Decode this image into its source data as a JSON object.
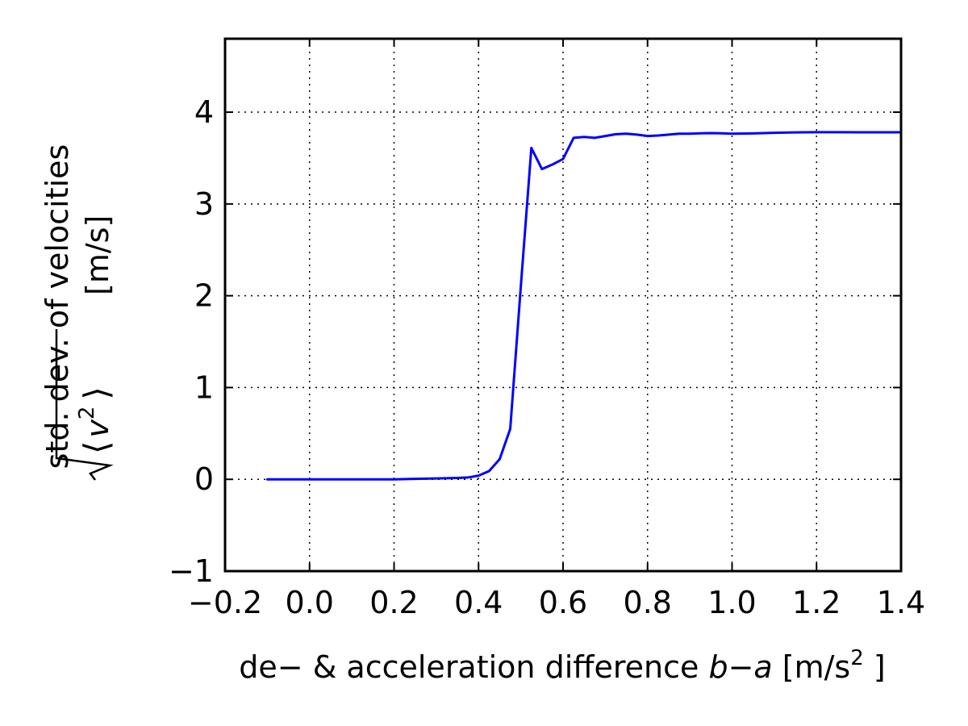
{
  "chart_data": {
    "type": "line",
    "xlabel_prefix": "de− & acceleration difference ",
    "xlabel_var_b": "b",
    "xlabel_var_minus": "−",
    "xlabel_var_a": "a",
    "xlabel_unit": " [m/s",
    "xlabel_unit_sup": "2",
    "xlabel_unit_close": " ]",
    "ylabel_line1": "std. dev. of velocities",
    "ylabel_var": "v",
    "ylabel_sup": "2",
    "ylabel_unit": "[m/s]",
    "xlim": [
      -0.2,
      1.4
    ],
    "ylim": [
      -1,
      4.8
    ],
    "xticks": [
      -0.2,
      0.0,
      0.2,
      0.4,
      0.6,
      0.8,
      1.0,
      1.2,
      1.4
    ],
    "xtick_labels": [
      "−0.2",
      "0.0",
      "0.2",
      "0.4",
      "0.6",
      "0.8",
      "1.0",
      "1.2",
      "1.4"
    ],
    "yticks": [
      -1,
      0,
      1,
      2,
      3,
      4
    ],
    "ytick_labels": [
      "−1",
      "0",
      "1",
      "2",
      "3",
      "4"
    ],
    "grid": true,
    "series": [
      {
        "color": "#0000ff",
        "x": [
          -0.1,
          0.0,
          0.1,
          0.2,
          0.25,
          0.3,
          0.35,
          0.375,
          0.4,
          0.425,
          0.45,
          0.475,
          0.5,
          0.525,
          0.55,
          0.575,
          0.6,
          0.625,
          0.65,
          0.675,
          0.7,
          0.725,
          0.75,
          0.775,
          0.8,
          0.825,
          0.85,
          0.875,
          0.9,
          0.925,
          0.95,
          0.975,
          1.0,
          1.05,
          1.1,
          1.15,
          1.2,
          1.25,
          1.3,
          1.35,
          1.4
        ],
        "y": [
          0.0,
          0.0,
          0.0,
          0.0,
          0.005,
          0.01,
          0.015,
          0.02,
          0.04,
          0.09,
          0.22,
          0.55,
          2.1,
          3.61,
          3.38,
          3.43,
          3.49,
          3.72,
          3.73,
          3.72,
          3.74,
          3.76,
          3.765,
          3.755,
          3.74,
          3.745,
          3.755,
          3.765,
          3.765,
          3.77,
          3.772,
          3.77,
          3.765,
          3.768,
          3.775,
          3.78,
          3.782,
          3.782,
          3.781,
          3.781,
          3.781
        ]
      }
    ]
  }
}
